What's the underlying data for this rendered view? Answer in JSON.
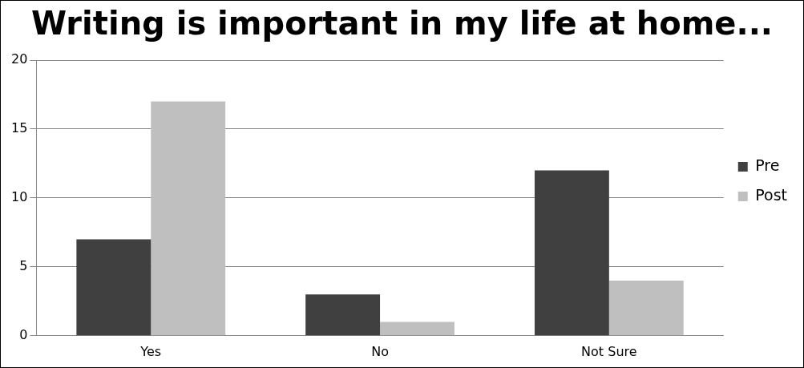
{
  "chart_data": {
    "type": "bar",
    "title": "Writing is important in my life at home...",
    "categories": [
      "Yes",
      "No",
      "Not Sure"
    ],
    "series": [
      {
        "name": "Pre",
        "color": "#404040",
        "values": [
          7,
          3,
          12
        ]
      },
      {
        "name": "Post",
        "color": "#bfbfbf",
        "values": [
          17,
          1,
          4
        ]
      }
    ],
    "ylim": [
      0,
      20
    ],
    "yticks": [
      0,
      5,
      10,
      15,
      20
    ],
    "grid": "y",
    "legend": "right"
  }
}
